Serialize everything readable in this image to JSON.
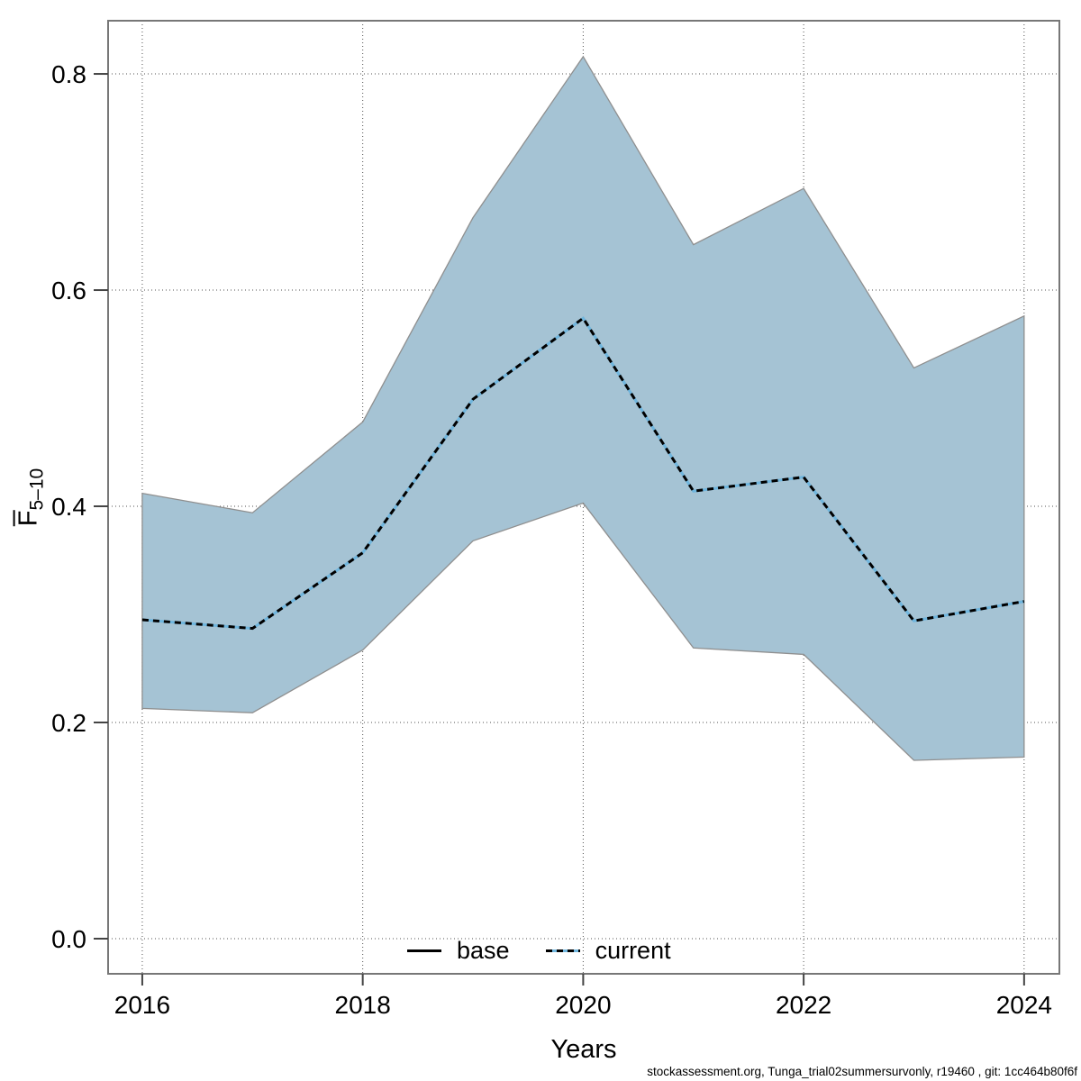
{
  "page": {
    "background": "#ffffff"
  },
  "footer": {
    "text": "stockassessment.org, Tunga_trial02summersurvonly, r19460 , git: 1cc464b80f6f"
  },
  "chart_data": {
    "type": "area",
    "title": "",
    "xlabel": "Years",
    "ylabel_main": "F",
    "ylabel_sub": "5–10",
    "x": [
      2016,
      2017,
      2018,
      2019,
      2020,
      2021,
      2022,
      2023,
      2024
    ],
    "series": [
      {
        "name": "current",
        "line_style": "dotted",
        "dash_color": "#000000",
        "underlay_color": "#6fb5dd",
        "values": [
          0.295,
          0.287,
          0.357,
          0.499,
          0.574,
          0.414,
          0.427,
          0.294,
          0.312
        ],
        "ci_low": [
          0.213,
          0.209,
          0.267,
          0.368,
          0.403,
          0.269,
          0.263,
          0.165,
          0.168
        ],
        "ci_high": [
          0.412,
          0.394,
          0.478,
          0.667,
          0.816,
          0.642,
          0.694,
          0.528,
          0.576
        ]
      }
    ],
    "band_fill": "#a5c3d4",
    "band_edge": "#8f8f8f",
    "x_ticks": [
      2016,
      2018,
      2020,
      2022,
      2024
    ],
    "y_ticks": [
      "0.0",
      "0.2",
      "0.4",
      "0.6",
      "0.8"
    ],
    "xlim": [
      2015.69,
      2024.32
    ],
    "ylim": [
      -0.0325,
      0.8492
    ],
    "grid": true,
    "grid_color": "#505050",
    "border_color": "#777777",
    "legend_position": "bottom-center-inside",
    "legend": [
      {
        "label": "base",
        "style": "solid",
        "color": "#000000"
      },
      {
        "label": "current",
        "style": "dotted",
        "color": "#6fb5dd"
      }
    ]
  }
}
